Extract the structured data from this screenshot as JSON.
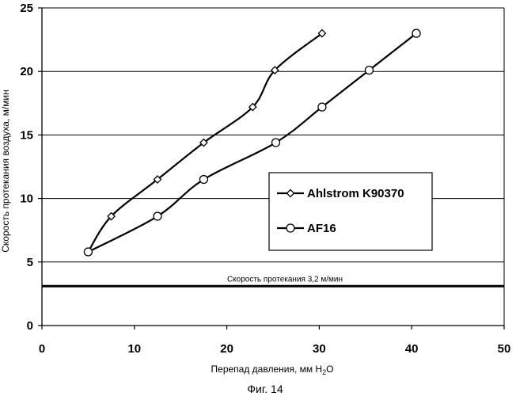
{
  "chart_data": {
    "type": "line",
    "xlabel_main": "Перепад давления, мм H",
    "xlabel_sub": "2",
    "xlabel_end": "O",
    "ylabel": "Скорость протекания воздуха, м/мин",
    "xlim": [
      0,
      50
    ],
    "ylim": [
      0,
      25
    ],
    "x_ticks": [
      0,
      10,
      20,
      30,
      40,
      50
    ],
    "y_ticks": [
      0,
      5,
      10,
      15,
      20,
      25
    ],
    "grid": "horizontal",
    "legend_position": "center-right",
    "series": [
      {
        "name": "Ahlstrom K90370",
        "marker": "diamond",
        "x": [
          5.0,
          7.5,
          12.5,
          17.5,
          22.8,
          25.2,
          30.3
        ],
        "y": [
          5.8,
          8.6,
          11.5,
          14.4,
          17.2,
          20.1,
          23.0
        ]
      },
      {
        "name": "AF16",
        "marker": "circle",
        "x": [
          5.0,
          12.5,
          17.5,
          25.3,
          30.3,
          35.4,
          40.5
        ],
        "y": [
          5.8,
          8.6,
          11.5,
          14.4,
          17.2,
          20.1,
          23.0
        ]
      }
    ],
    "reference_line": {
      "y": 3.1,
      "label": "Скорость протекания 3,2 м/мин"
    },
    "caption": "Фиг. 14"
  }
}
